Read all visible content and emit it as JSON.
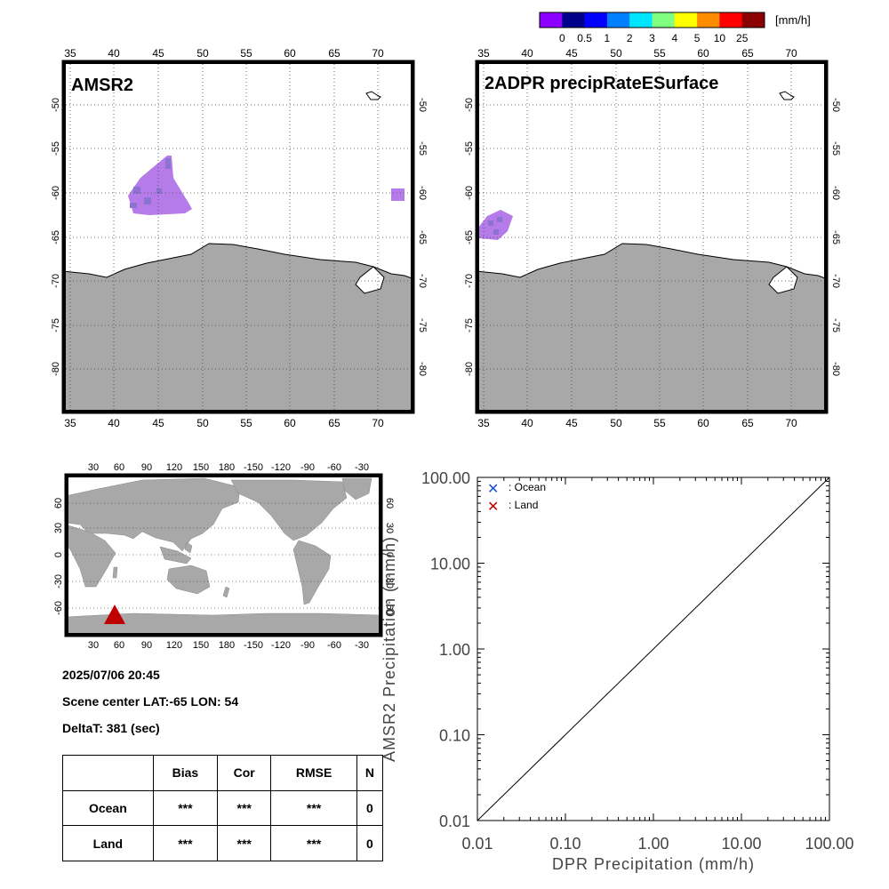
{
  "colorbar": {
    "unit": "[mm/h]",
    "ticks": [
      "0",
      "0.5",
      "1",
      "2",
      "3",
      "4",
      "5",
      "10",
      "25"
    ],
    "colors": [
      "#8b00ff",
      "#00008b",
      "#0000ff",
      "#0080ff",
      "#00e5ff",
      "#80ff80",
      "#ffff00",
      "#ff8c00",
      "#ff0000",
      "#8b0000"
    ]
  },
  "map_left": {
    "title": "AMSR2"
  },
  "map_right": {
    "title": "2ADPR precipRateESurface"
  },
  "map_axes": {
    "lon_ticks": [
      "35",
      "40",
      "45",
      "50",
      "55",
      "60",
      "65",
      "70"
    ],
    "lat_ticks": [
      "-50",
      "-55",
      "-60",
      "-65",
      "-70",
      "-75",
      "-80"
    ]
  },
  "colors": {
    "land": "#a8a8a8",
    "rain_light": "#b57be8",
    "rain_med": "#8c73d2",
    "ocean_marker": "#1f4fd8",
    "land_marker": "#c00000"
  },
  "globe": {
    "lon_ticks": [
      "30",
      "60",
      "90",
      "120",
      "150",
      "180",
      "-150",
      "-120",
      "-90",
      "-60",
      "-30"
    ],
    "lat_ticks": [
      "60",
      "30",
      "0",
      "-30",
      "-60"
    ]
  },
  "info": {
    "datetime": "2025/07/06 20:45",
    "scene_center": "Scene center LAT:-65   LON:  54",
    "delta": "DeltaT:  381 (sec)"
  },
  "stats_table": {
    "headers": [
      "",
      "Bias",
      "Cor",
      "RMSE",
      "N"
    ],
    "rows": [
      {
        "label": "Ocean",
        "bias": "***",
        "cor": "***",
        "rmse": "***",
        "n": "0"
      },
      {
        "label": "Land",
        "bias": "***",
        "cor": "***",
        "rmse": "***",
        "n": "0"
      }
    ]
  },
  "chart_data": {
    "type": "scatter",
    "xlabel": "DPR Precipitation (mm/h)",
    "ylabel": "AMSR2 Precipitation (mm/h)",
    "x_scale": "log",
    "y_scale": "log",
    "xlim": [
      0.01,
      100
    ],
    "ylim": [
      0.01,
      100
    ],
    "x_ticks": [
      "0.01",
      "0.10",
      "1.00",
      "10.00",
      "100.00"
    ],
    "y_ticks": [
      "0.01",
      "0.10",
      "1.00",
      "10.00",
      "100.00"
    ],
    "series": [
      {
        "name": ": Ocean",
        "points": []
      },
      {
        "name": ": Land",
        "points": []
      }
    ],
    "reference_line": "1:1",
    "legend_position": "top-left"
  }
}
